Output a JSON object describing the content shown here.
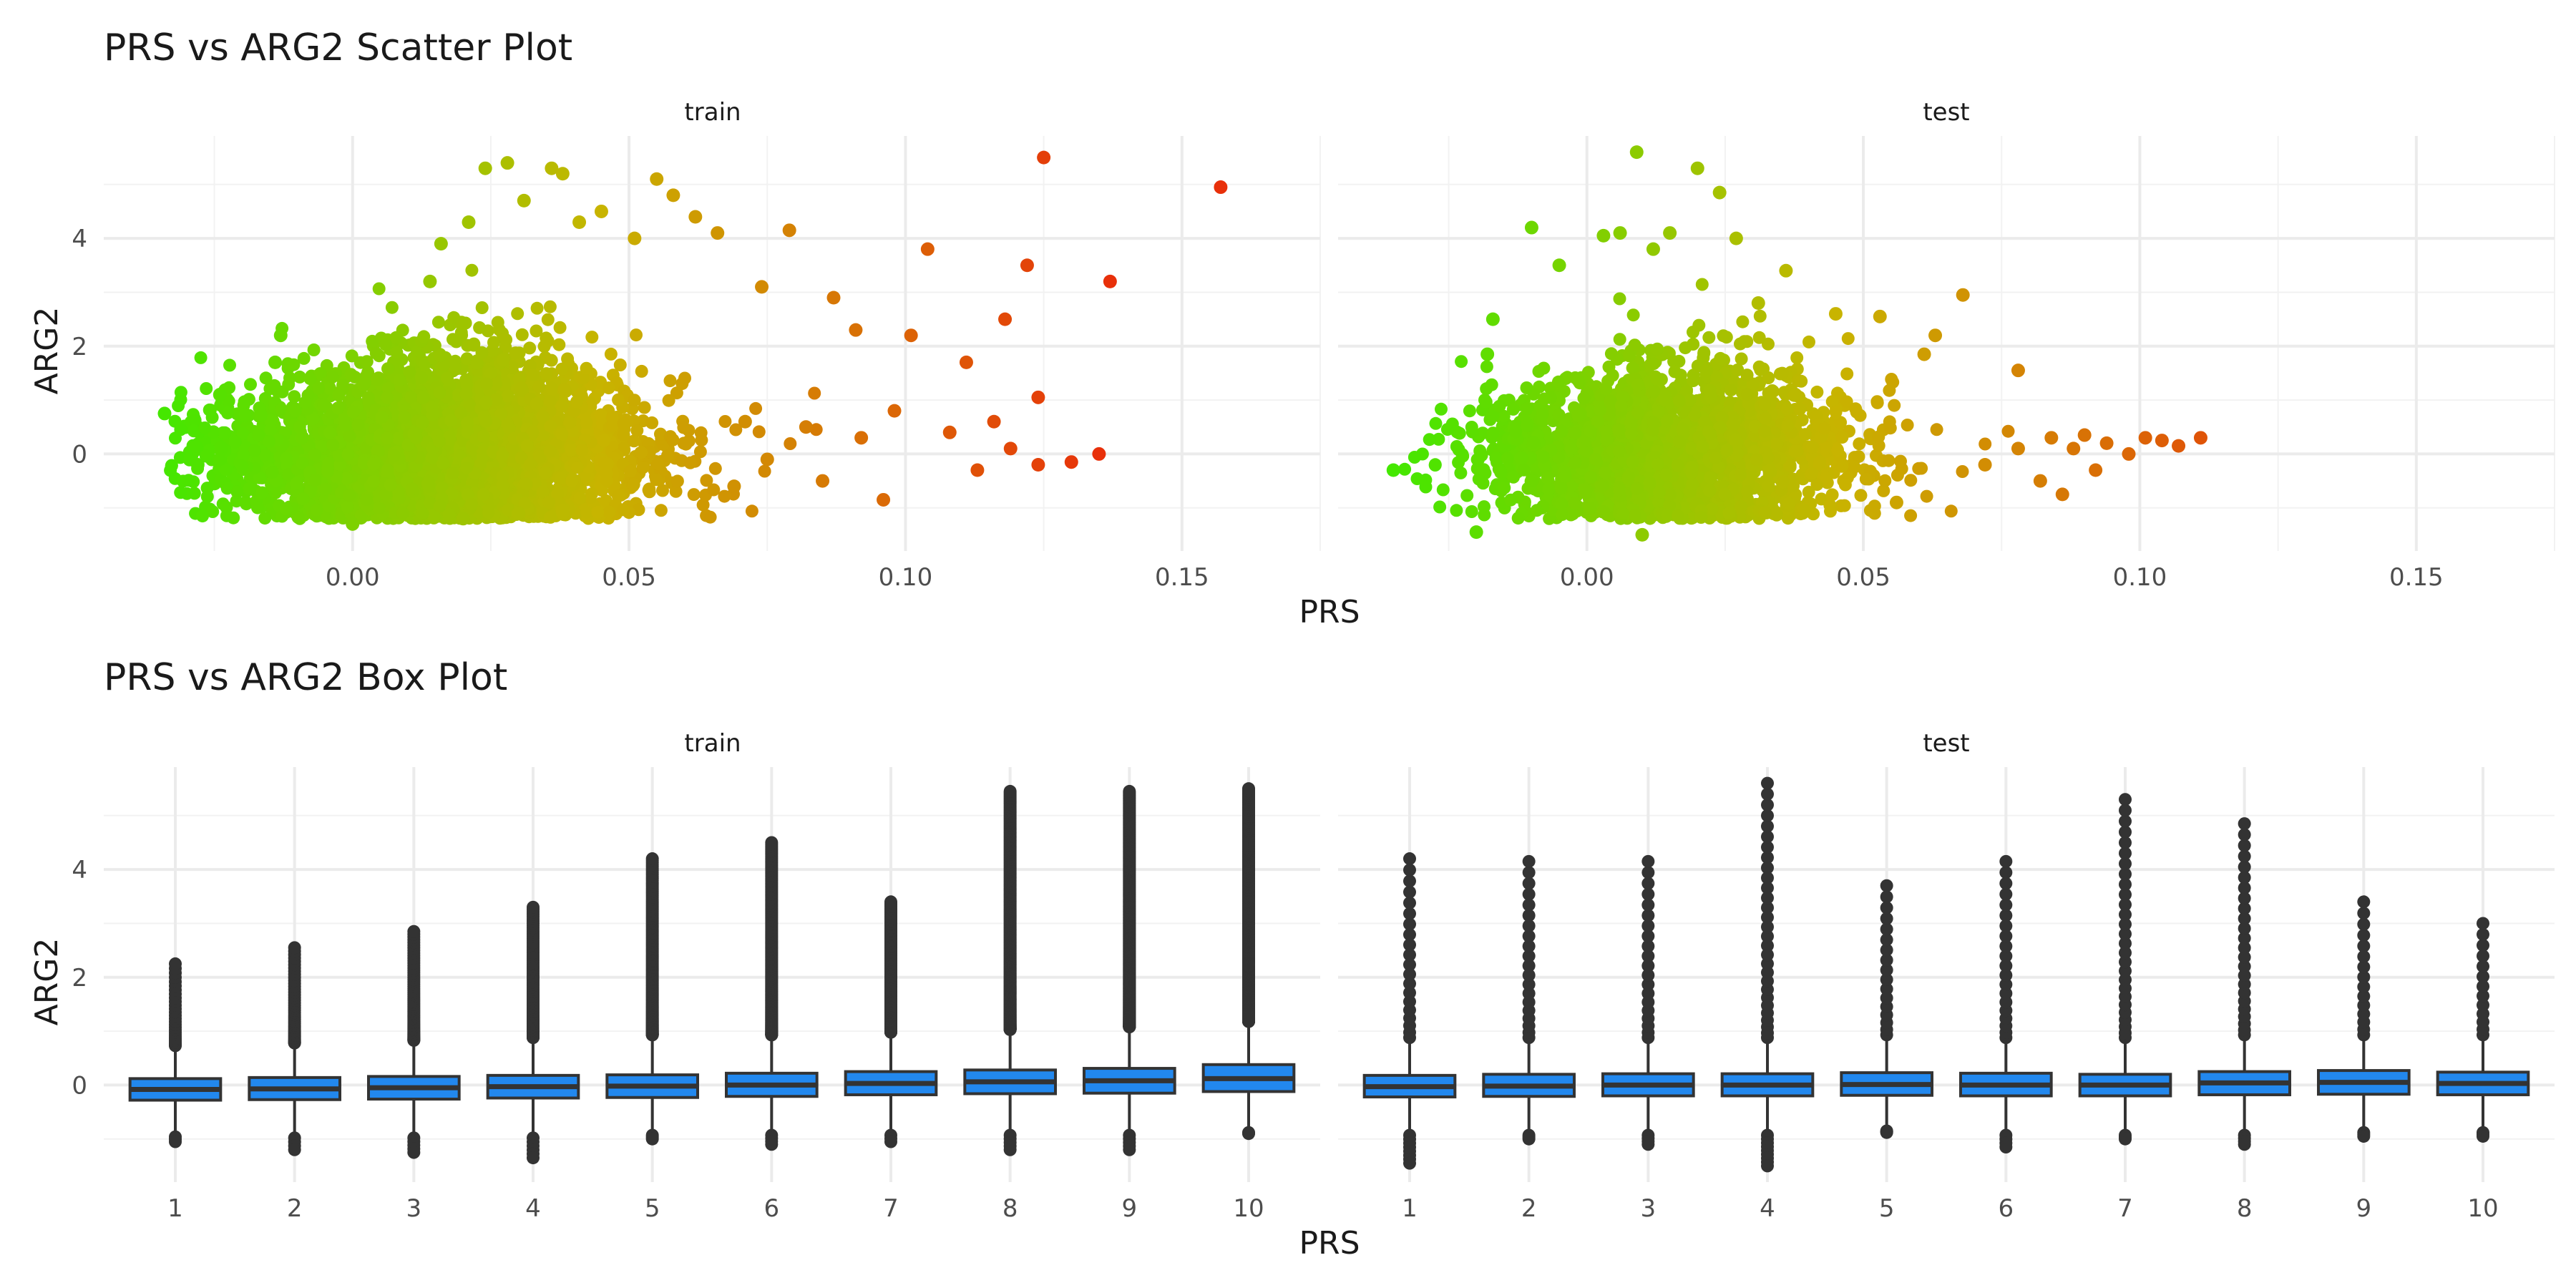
{
  "chart_data": [
    {
      "type": "scatter",
      "title": "PRS vs ARG2 Scatter Plot",
      "xlabel": "PRS",
      "ylabel": "ARG2",
      "xlim": [
        -0.045,
        0.175
      ],
      "ylim": [
        -1.8,
        5.9
      ],
      "x_ticks": [
        "0.00",
        "0.05",
        "0.10",
        "0.15"
      ],
      "x_tick_values": [
        0.0,
        0.05,
        0.1,
        0.15
      ],
      "y_ticks": [
        "0",
        "2",
        "4"
      ],
      "y_tick_values": [
        0,
        2,
        4
      ],
      "grid": true,
      "color_gradient": {
        "low": "#33ee00",
        "mid": "#c8b400",
        "high": "#e8300a",
        "by": "PRS"
      },
      "panels": [
        {
          "name": "train",
          "bulk": {
            "x_center": 0.015,
            "x_spread": 0.018,
            "y_center": 0.0,
            "y_spread": 0.7,
            "count": 3800
          },
          "points": [
            {
              "x": -0.034,
              "y": 0.75
            },
            {
              "x": -0.028,
              "y": -0.2
            },
            {
              "x": -0.024,
              "y": 1.1
            },
            {
              "x": -0.014,
              "y": 1.7
            },
            {
              "x": -0.013,
              "y": 2.2
            },
            {
              "x": 0.014,
              "y": 3.2
            },
            {
              "x": 0.016,
              "y": 3.9
            },
            {
              "x": 0.021,
              "y": 4.3
            },
            {
              "x": 0.024,
              "y": 5.3
            },
            {
              "x": 0.028,
              "y": 5.4
            },
            {
              "x": 0.031,
              "y": 4.7
            },
            {
              "x": 0.036,
              "y": 5.3
            },
            {
              "x": 0.038,
              "y": 5.2
            },
            {
              "x": 0.041,
              "y": 4.3
            },
            {
              "x": 0.045,
              "y": 4.5
            },
            {
              "x": 0.051,
              "y": 4.0
            },
            {
              "x": 0.055,
              "y": 5.1
            },
            {
              "x": 0.058,
              "y": 4.8
            },
            {
              "x": 0.062,
              "y": 4.4
            },
            {
              "x": 0.066,
              "y": 4.1
            },
            {
              "x": 0.074,
              "y": 3.1
            },
            {
              "x": 0.079,
              "y": 4.15
            },
            {
              "x": 0.087,
              "y": 2.9
            },
            {
              "x": 0.091,
              "y": 2.3
            },
            {
              "x": 0.096,
              "y": -0.85
            },
            {
              "x": 0.101,
              "y": 2.2
            },
            {
              "x": 0.104,
              "y": 3.8
            },
            {
              "x": 0.111,
              "y": 1.7
            },
            {
              "x": 0.118,
              "y": 2.5
            },
            {
              "x": 0.122,
              "y": 3.5
            },
            {
              "x": 0.124,
              "y": 1.05
            },
            {
              "x": 0.125,
              "y": 5.5
            },
            {
              "x": 0.124,
              "y": -0.2
            },
            {
              "x": 0.13,
              "y": -0.15
            },
            {
              "x": 0.135,
              "y": 0.0
            },
            {
              "x": 0.137,
              "y": 3.2
            },
            {
              "x": 0.157,
              "y": 4.95
            },
            {
              "x": 0.113,
              "y": -0.3
            },
            {
              "x": 0.108,
              "y": 0.4
            },
            {
              "x": 0.116,
              "y": 0.6
            },
            {
              "x": 0.119,
              "y": 0.1
            },
            {
              "x": 0.098,
              "y": 0.8
            },
            {
              "x": 0.092,
              "y": 0.3
            },
            {
              "x": 0.085,
              "y": -0.5
            },
            {
              "x": 0.082,
              "y": 0.5
            },
            {
              "x": 0.075,
              "y": -0.1
            },
            {
              "x": 0.071,
              "y": 0.6
            },
            {
              "x": 0.069,
              "y": -0.6
            },
            {
              "x": 0.0,
              "y": -1.3
            },
            {
              "x": 0.02,
              "y": -1.2
            },
            {
              "x": 0.03,
              "y": -1.1
            }
          ]
        },
        {
          "name": "test",
          "bulk": {
            "x_center": 0.015,
            "x_spread": 0.016,
            "y_center": 0.0,
            "y_spread": 0.65,
            "count": 2200
          },
          "points": [
            {
              "x": -0.035,
              "y": -0.3
            },
            {
              "x": -0.02,
              "y": -1.45
            },
            {
              "x": -0.018,
              "y": 1.85
            },
            {
              "x": -0.017,
              "y": 2.5
            },
            {
              "x": -0.01,
              "y": 4.2
            },
            {
              "x": -0.005,
              "y": 3.5
            },
            {
              "x": 0.003,
              "y": 4.05
            },
            {
              "x": 0.006,
              "y": 4.1
            },
            {
              "x": 0.009,
              "y": 5.6
            },
            {
              "x": 0.01,
              "y": -1.5
            },
            {
              "x": 0.012,
              "y": 3.8
            },
            {
              "x": 0.015,
              "y": 4.1
            },
            {
              "x": 0.02,
              "y": 5.3
            },
            {
              "x": 0.024,
              "y": 4.85
            },
            {
              "x": 0.027,
              "y": 4.0
            },
            {
              "x": 0.031,
              "y": 2.8
            },
            {
              "x": 0.036,
              "y": 3.4
            },
            {
              "x": 0.045,
              "y": 2.6
            },
            {
              "x": 0.053,
              "y": 2.55
            },
            {
              "x": 0.061,
              "y": 1.85
            },
            {
              "x": 0.063,
              "y": 2.2
            },
            {
              "x": 0.068,
              "y": 2.95
            },
            {
              "x": 0.078,
              "y": 1.55
            },
            {
              "x": 0.056,
              "y": -0.9
            },
            {
              "x": 0.072,
              "y": -0.2
            },
            {
              "x": 0.078,
              "y": 0.1
            },
            {
              "x": 0.082,
              "y": -0.5
            },
            {
              "x": 0.086,
              "y": -0.75
            },
            {
              "x": 0.09,
              "y": 0.35
            },
            {
              "x": 0.094,
              "y": 0.2
            },
            {
              "x": 0.098,
              "y": 0.0
            },
            {
              "x": 0.101,
              "y": 0.3
            },
            {
              "x": 0.104,
              "y": 0.25
            },
            {
              "x": 0.107,
              "y": 0.15
            },
            {
              "x": 0.111,
              "y": 0.3
            },
            {
              "x": 0.088,
              "y": 0.1
            },
            {
              "x": 0.084,
              "y": 0.3
            },
            {
              "x": 0.092,
              "y": -0.3
            }
          ]
        }
      ]
    },
    {
      "type": "box",
      "title": "PRS vs ARG2 Box Plot",
      "xlabel": "PRS",
      "ylabel": "ARG2",
      "categories": [
        "1",
        "2",
        "3",
        "4",
        "5",
        "6",
        "7",
        "8",
        "9",
        "10"
      ],
      "ylim": [
        -1.8,
        5.9
      ],
      "y_ticks": [
        "0",
        "2",
        "4"
      ],
      "y_tick_values": [
        0,
        2,
        4
      ],
      "grid": true,
      "box_color": "#2288ee",
      "outlier_color": "#333333",
      "panels": [
        {
          "name": "train",
          "boxes": [
            {
              "q1": -0.28,
              "median": -0.08,
              "q3": 0.12,
              "whisker_low": -0.88,
              "whisker_high": 0.65,
              "outlier_max": 2.25,
              "outlier_min": -1.05
            },
            {
              "q1": -0.27,
              "median": -0.07,
              "q3": 0.14,
              "whisker_low": -0.9,
              "whisker_high": 0.7,
              "outlier_max": 2.55,
              "outlier_min": -1.2
            },
            {
              "q1": -0.26,
              "median": -0.05,
              "q3": 0.16,
              "whisker_low": -0.9,
              "whisker_high": 0.75,
              "outlier_max": 2.85,
              "outlier_min": -1.25
            },
            {
              "q1": -0.24,
              "median": -0.03,
              "q3": 0.18,
              "whisker_low": -0.9,
              "whisker_high": 0.8,
              "outlier_max": 3.3,
              "outlier_min": -1.35
            },
            {
              "q1": -0.23,
              "median": -0.02,
              "q3": 0.19,
              "whisker_low": -0.85,
              "whisker_high": 0.85,
              "outlier_max": 4.2,
              "outlier_min": -1.0
            },
            {
              "q1": -0.21,
              "median": 0.0,
              "q3": 0.22,
              "whisker_low": -0.85,
              "whisker_high": 0.85,
              "outlier_max": 4.5,
              "outlier_min": -1.1
            },
            {
              "q1": -0.18,
              "median": 0.03,
              "q3": 0.25,
              "whisker_low": -0.85,
              "whisker_high": 0.9,
              "outlier_max": 3.4,
              "outlier_min": -1.05
            },
            {
              "q1": -0.16,
              "median": 0.06,
              "q3": 0.28,
              "whisker_low": -0.85,
              "whisker_high": 0.95,
              "outlier_max": 5.45,
              "outlier_min": -1.2
            },
            {
              "q1": -0.15,
              "median": 0.08,
              "q3": 0.31,
              "whisker_low": -0.85,
              "whisker_high": 1.0,
              "outlier_max": 5.45,
              "outlier_min": -1.2
            },
            {
              "q1": -0.12,
              "median": 0.12,
              "q3": 0.38,
              "whisker_low": -0.8,
              "whisker_high": 1.1,
              "outlier_max": 5.5,
              "outlier_min": -0.9
            }
          ]
        },
        {
          "name": "test",
          "boxes": [
            {
              "q1": -0.22,
              "median": -0.03,
              "q3": 0.18,
              "whisker_low": -0.85,
              "whisker_high": 0.8,
              "outlier_max": 4.2,
              "outlier_min": -1.45
            },
            {
              "q1": -0.21,
              "median": -0.02,
              "q3": 0.2,
              "whisker_low": -0.85,
              "whisker_high": 0.8,
              "outlier_max": 4.15,
              "outlier_min": -1.0
            },
            {
              "q1": -0.2,
              "median": 0.0,
              "q3": 0.21,
              "whisker_low": -0.85,
              "whisker_high": 0.8,
              "outlier_max": 4.15,
              "outlier_min": -1.1
            },
            {
              "q1": -0.2,
              "median": 0.0,
              "q3": 0.21,
              "whisker_low": -0.85,
              "whisker_high": 0.8,
              "outlier_max": 5.6,
              "outlier_min": -1.5
            },
            {
              "q1": -0.19,
              "median": 0.01,
              "q3": 0.23,
              "whisker_low": -0.8,
              "whisker_high": 0.85,
              "outlier_max": 3.7,
              "outlier_min": -0.85
            },
            {
              "q1": -0.2,
              "median": 0.0,
              "q3": 0.22,
              "whisker_low": -0.85,
              "whisker_high": 0.8,
              "outlier_max": 4.15,
              "outlier_min": -1.15
            },
            {
              "q1": -0.2,
              "median": 0.0,
              "q3": 0.2,
              "whisker_low": -0.85,
              "whisker_high": 0.8,
              "outlier_max": 5.3,
              "outlier_min": -1.0
            },
            {
              "q1": -0.18,
              "median": 0.04,
              "q3": 0.25,
              "whisker_low": -0.85,
              "whisker_high": 0.85,
              "outlier_max": 4.85,
              "outlier_min": -1.1
            },
            {
              "q1": -0.17,
              "median": 0.05,
              "q3": 0.27,
              "whisker_low": -0.8,
              "whisker_high": 0.85,
              "outlier_max": 3.4,
              "outlier_min": -0.95
            },
            {
              "q1": -0.18,
              "median": 0.03,
              "q3": 0.24,
              "whisker_low": -0.8,
              "whisker_high": 0.85,
              "outlier_max": 3.0,
              "outlier_min": -0.95
            }
          ]
        }
      ]
    }
  ]
}
